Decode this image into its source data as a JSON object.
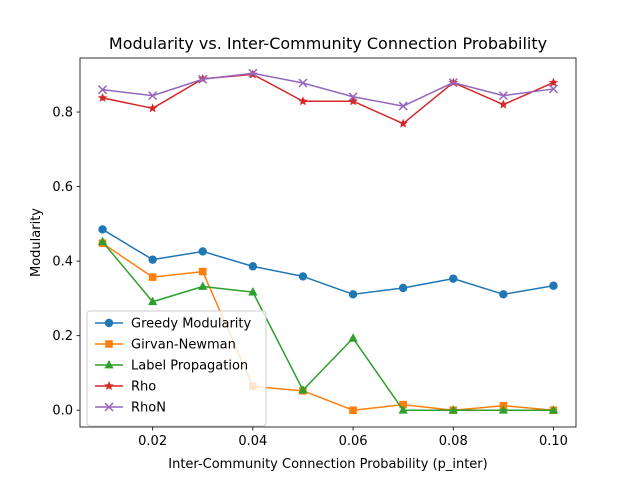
{
  "chart_data": {
    "type": "line",
    "title": "Modularity vs. Inter-Community Connection Probability",
    "xlabel": "Inter-Community Connection Probability (p_inter)",
    "ylabel": "Modularity",
    "xlim": [
      0.0055,
      0.1045
    ],
    "ylim": [
      -0.045,
      0.945
    ],
    "x": [
      0.01,
      0.02,
      0.03,
      0.04,
      0.05,
      0.06,
      0.07,
      0.08,
      0.09,
      0.1
    ],
    "xticks": [
      0.02,
      0.04,
      0.06,
      0.08,
      0.1
    ],
    "xtick_labels": [
      "0.02",
      "0.04",
      "0.06",
      "0.08",
      "0.10"
    ],
    "yticks": [
      0.0,
      0.2,
      0.4,
      0.6,
      0.8
    ],
    "ytick_labels": [
      "0.0",
      "0.2",
      "0.4",
      "0.6",
      "0.8"
    ],
    "grid": false,
    "legend_position": "lower-left",
    "series": [
      {
        "name": "Greedy Modularity",
        "color": "#1f77b4",
        "marker": "circle",
        "values": [
          0.485,
          0.404,
          0.426,
          0.386,
          0.359,
          0.311,
          0.328,
          0.353,
          0.311,
          0.334
        ]
      },
      {
        "name": "Girvan-Newman",
        "color": "#ff7f0e",
        "marker": "square",
        "values": [
          0.448,
          0.357,
          0.372,
          0.064,
          0.052,
          0.0,
          0.015,
          0.0,
          0.012,
          0.0
        ]
      },
      {
        "name": "Label Propagation",
        "color": "#2ca02c",
        "marker": "triangle",
        "values": [
          0.452,
          0.291,
          0.332,
          0.317,
          0.054,
          0.193,
          0.0,
          0.0,
          0.0,
          0.0
        ]
      },
      {
        "name": "Rho",
        "color": "#d62728",
        "marker": "star",
        "values": [
          0.838,
          0.81,
          0.889,
          0.901,
          0.829,
          0.829,
          0.769,
          0.879,
          0.82,
          0.879
        ]
      },
      {
        "name": "RhoN",
        "color": "#9467bd",
        "marker": "x",
        "values": [
          0.86,
          0.844,
          0.888,
          0.904,
          0.878,
          0.841,
          0.816,
          0.879,
          0.844,
          0.862
        ]
      }
    ]
  }
}
